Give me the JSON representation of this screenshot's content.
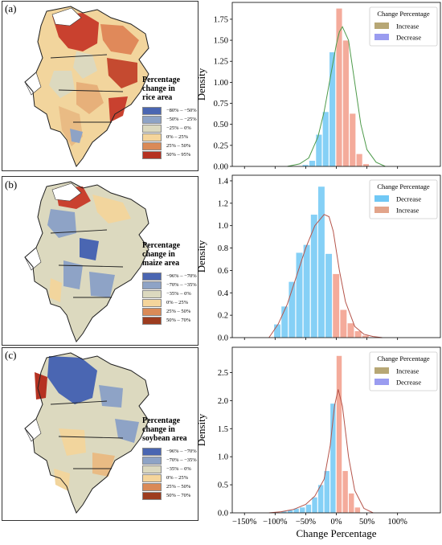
{
  "panels": [
    {
      "letter": "(a)",
      "legend_title": [
        "Percentage",
        "change in",
        "rice area"
      ],
      "legend_items": [
        {
          "label": "−80% – −50%",
          "color": "#4a66b2"
        },
        {
          "label": "−50% – −25%",
          "color": "#8ea3c6"
        },
        {
          "label": "−25% – 0%",
          "color": "#dcd9bf"
        },
        {
          "label": "0% – 25%",
          "color": "#f5d59b"
        },
        {
          "label": "25% – 50%",
          "color": "#da8a57"
        },
        {
          "label": "50% – 95%",
          "color": "#b53222"
        }
      ]
    },
    {
      "letter": "(b)",
      "legend_title": [
        "Percentage",
        "change in",
        "maize area"
      ],
      "legend_items": [
        {
          "label": "−96% – −70%",
          "color": "#4a66b2"
        },
        {
          "label": "−70% – −35%",
          "color": "#8ea3c6"
        },
        {
          "label": "−35% – 0%",
          "color": "#dcd9bf"
        },
        {
          "label": "0% – 25%",
          "color": "#f5d59b"
        },
        {
          "label": "25% – 50%",
          "color": "#da8a57"
        },
        {
          "label": "50% – 70%",
          "color": "#9d3c1f"
        }
      ]
    },
    {
      "letter": "(c)",
      "legend_title": [
        "Percentage",
        "change in",
        "soybean area"
      ],
      "legend_items": [
        {
          "label": "−96% – −70%",
          "color": "#4a66b2"
        },
        {
          "label": "−70% – −35%",
          "color": "#8ea3c6"
        },
        {
          "label": "−35% – 0%",
          "color": "#dcd9bf"
        },
        {
          "label": "0% – 25%",
          "color": "#f5d59b"
        },
        {
          "label": "25% – 50%",
          "color": "#da8a57"
        },
        {
          "label": "50% – 70%",
          "color": "#9d3c1f"
        }
      ]
    }
  ],
  "chart_data": [
    {
      "type": "bar",
      "ylabel": "Density",
      "xlabel": "",
      "xlim": [
        -170,
        170
      ],
      "ylim": [
        0,
        1.95
      ],
      "yticks": [
        0.0,
        0.25,
        0.5,
        0.75,
        1.0,
        1.25,
        1.5,
        1.75
      ],
      "ytick_labels": [
        "0.00",
        "0.25",
        "0.50",
        "0.75",
        "1.00",
        "1.25",
        "1.50",
        "1.75"
      ],
      "bin_width": 11,
      "legend_title": "Change Percentage",
      "legend_entries": [
        {
          "name": "Increase",
          "color": "#b7a775"
        },
        {
          "name": "Decrease",
          "color": "#9a9cf0"
        }
      ],
      "series": [
        {
          "name": "Decrease",
          "color": "#70c8f5",
          "x": [
            -50,
            -39,
            -28,
            -17,
            -6
          ],
          "values": [
            0.02,
            0.07,
            0.38,
            0.65,
            1.36
          ]
        },
        {
          "name": "Increase",
          "color": "#f29c8a",
          "x": [
            5,
            16,
            27,
            38,
            49
          ],
          "values": [
            1.88,
            1.5,
            0.63,
            0.15,
            0.03
          ]
        }
      ],
      "kde": {
        "color": "#4d9a4a",
        "x": [
          -80,
          -60,
          -45,
          -30,
          -20,
          -10,
          0,
          5,
          10,
          20,
          30,
          40,
          50,
          65,
          80
        ],
        "y": [
          0.0,
          0.03,
          0.1,
          0.35,
          0.65,
          1.05,
          1.45,
          1.6,
          1.66,
          1.5,
          1.0,
          0.5,
          0.2,
          0.05,
          0.0
        ]
      }
    },
    {
      "type": "bar",
      "ylabel": "Density",
      "xlabel": "",
      "xlim": [
        -170,
        170
      ],
      "ylim": [
        0,
        1.45
      ],
      "yticks": [
        0.0,
        0.2,
        0.4,
        0.6,
        0.8,
        1.0,
        1.2,
        1.4
      ],
      "ytick_labels": [
        "0.0",
        "0.2",
        "0.4",
        "0.6",
        "0.8",
        "1.0",
        "1.2",
        "1.4"
      ],
      "bin_width": 12,
      "legend_title": "Change Percentage",
      "legend_entries": [
        {
          "name": "Decrease",
          "color": "#70c8f5"
        },
        {
          "name": "Increase",
          "color": "#e2a48a"
        }
      ],
      "series": [
        {
          "name": "Decrease",
          "color": "#70c8f5",
          "x": [
            -96,
            -84,
            -72,
            -60,
            -48,
            -36,
            -24,
            -12
          ],
          "values": [
            0.12,
            0.28,
            0.5,
            0.76,
            0.83,
            1.1,
            1.35,
            0.75
          ]
        },
        {
          "name": "Increase",
          "color": "#f29c8a",
          "x": [
            0,
            12,
            24,
            36,
            48
          ],
          "values": [
            0.57,
            0.25,
            0.13,
            0.06,
            0.02
          ]
        }
      ],
      "kde": {
        "color": "#b5544a",
        "x": [
          -110,
          -95,
          -80,
          -65,
          -50,
          -35,
          -20,
          -12,
          -5,
          5,
          15,
          30,
          45,
          60,
          75
        ],
        "y": [
          0.0,
          0.12,
          0.3,
          0.55,
          0.8,
          1.0,
          1.1,
          1.08,
          0.95,
          0.6,
          0.32,
          0.1,
          0.03,
          0.01,
          0.0
        ]
      }
    },
    {
      "type": "bar",
      "ylabel": "Density",
      "xlabel": "Change Percentage",
      "xlim": [
        -170,
        170
      ],
      "ylim": [
        0,
        2.95
      ],
      "yticks": [
        0.0,
        0.5,
        1.0,
        1.5,
        2.0,
        2.5
      ],
      "ytick_labels": [
        "0.0",
        "0.5",
        "1.0",
        "1.5",
        "2.0",
        "2.5"
      ],
      "xticks": [
        -150,
        -100,
        -50,
        0,
        50,
        100
      ],
      "xtick_labels": [
        "−150%",
        "−100%",
        "−50%",
        "0%",
        "50%",
        "100%"
      ],
      "bin_width": 10,
      "legend_title": "Change Percentage",
      "legend_entries": [
        {
          "name": "Increase",
          "color": "#b7a775"
        },
        {
          "name": "Decrease",
          "color": "#9a9cf0"
        }
      ],
      "series": [
        {
          "name": "Decrease",
          "color": "#70c8f5",
          "x": [
            -85,
            -75,
            -65,
            -55,
            -45,
            -35,
            -25,
            -15,
            -5
          ],
          "values": [
            0.03,
            0.05,
            0.08,
            0.1,
            0.15,
            0.28,
            0.5,
            0.75,
            1.95
          ]
        },
        {
          "name": "Increase",
          "color": "#f29c8a",
          "x": [
            5,
            15,
            25,
            35
          ],
          "values": [
            2.8,
            0.75,
            0.35,
            0.1
          ]
        }
      ],
      "kde": {
        "color": "#b5544a",
        "x": [
          -110,
          -90,
          -70,
          -50,
          -35,
          -20,
          -10,
          -3,
          3,
          10,
          20,
          30,
          45,
          60
        ],
        "y": [
          0.0,
          0.02,
          0.06,
          0.15,
          0.3,
          0.6,
          1.2,
          1.9,
          2.2,
          1.9,
          1.0,
          0.4,
          0.08,
          0.0
        ]
      }
    }
  ]
}
